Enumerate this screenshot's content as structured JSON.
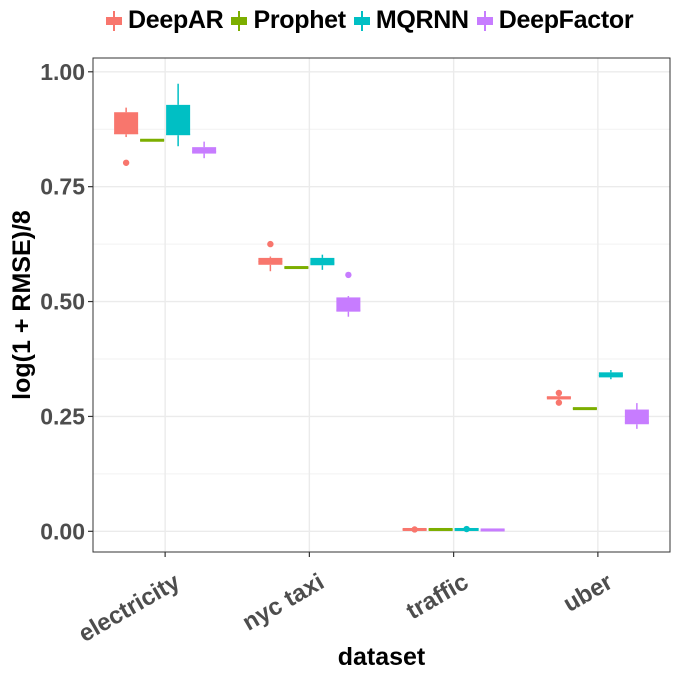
{
  "chart_data": {
    "type": "boxplot",
    "xlabel": "dataset",
    "ylabel": "log(1 + RMSE)/8",
    "ylim": [
      -0.045,
      1.03
    ],
    "yticks": [
      0.0,
      0.25,
      0.5,
      0.75,
      1.0
    ],
    "ytick_labels": [
      "0.00",
      "0.25",
      "0.50",
      "0.75",
      "1.00"
    ],
    "categories": [
      "electricity",
      "nyc taxi",
      "traffic",
      "uber"
    ],
    "legend_position": "top",
    "grid": true,
    "series": [
      {
        "name": "DeepAR",
        "color": "#F8766D",
        "boxes": [
          {
            "q1": 0.864,
            "median": 0.866,
            "q3": 0.912,
            "lower": 0.858,
            "upper": 0.922,
            "outliers": [
              0.802
            ]
          },
          {
            "q1": 0.58,
            "median": 0.587,
            "q3": 0.595,
            "lower": 0.566,
            "upper": 0.598,
            "outliers": [
              0.625
            ]
          },
          {
            "q1": 0.002,
            "median": 0.004,
            "q3": 0.006,
            "lower": 0.001,
            "upper": 0.007,
            "outliers": [
              0.004
            ]
          },
          {
            "q1": 0.287,
            "median": 0.291,
            "q3": 0.294,
            "lower": 0.284,
            "upper": 0.296,
            "outliers": [
              0.301,
              0.28
            ]
          }
        ]
      },
      {
        "name": "Prophet",
        "color": "#7CAE00",
        "boxes": [
          {
            "q1": 0.849,
            "median": 0.851,
            "q3": 0.853,
            "lower": 0.849,
            "upper": 0.853,
            "outliers": []
          },
          {
            "q1": 0.573,
            "median": 0.574,
            "q3": 0.575,
            "lower": 0.573,
            "upper": 0.575,
            "outliers": []
          },
          {
            "q1": 0.003,
            "median": 0.004,
            "q3": 0.005,
            "lower": 0.003,
            "upper": 0.005,
            "outliers": []
          },
          {
            "q1": 0.266,
            "median": 0.267,
            "q3": 0.268,
            "lower": 0.266,
            "upper": 0.268,
            "outliers": []
          }
        ]
      },
      {
        "name": "MQRNN",
        "color": "#00BFC4",
        "boxes": [
          {
            "q1": 0.862,
            "median": 0.864,
            "q3": 0.928,
            "lower": 0.838,
            "upper": 0.974,
            "outliers": []
          },
          {
            "q1": 0.579,
            "median": 0.584,
            "q3": 0.595,
            "lower": 0.569,
            "upper": 0.602,
            "outliers": []
          },
          {
            "q1": 0.002,
            "median": 0.005,
            "q3": 0.006,
            "lower": 0.001,
            "upper": 0.007,
            "outliers": [
              0.005
            ]
          },
          {
            "q1": 0.335,
            "median": 0.339,
            "q3": 0.346,
            "lower": 0.331,
            "upper": 0.351,
            "outliers": []
          }
        ]
      },
      {
        "name": "DeepFactor",
        "color": "#C77CFF",
        "boxes": [
          {
            "q1": 0.822,
            "median": 0.826,
            "q3": 0.836,
            "lower": 0.812,
            "upper": 0.848,
            "outliers": []
          },
          {
            "q1": 0.478,
            "median": 0.481,
            "q3": 0.509,
            "lower": 0.467,
            "upper": 0.512,
            "outliers": [
              0.558
            ]
          },
          {
            "q1": 0.002,
            "median": 0.003,
            "q3": 0.004,
            "lower": 0.002,
            "upper": 0.004,
            "outliers": []
          },
          {
            "q1": 0.233,
            "median": 0.237,
            "q3": 0.265,
            "lower": 0.223,
            "upper": 0.279,
            "outliers": []
          }
        ]
      }
    ]
  }
}
